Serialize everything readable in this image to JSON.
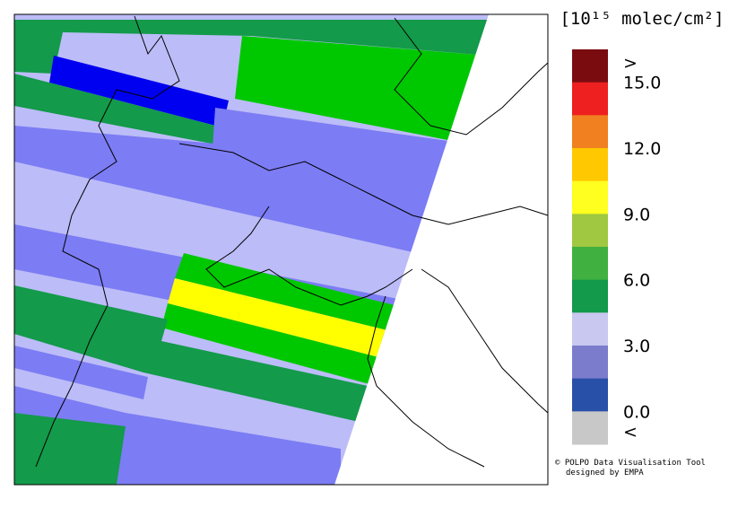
{
  "legend": {
    "title": "[10¹⁵ molec/cm²]",
    "labels": [
      ">",
      "15.0",
      "12.0",
      "9.0",
      "6.0",
      "3.0",
      "0.0",
      "<"
    ],
    "colors": [
      "#7a0c10",
      "#ee2020",
      "#f08020",
      "#ffc800",
      "#ffff20",
      "#a0c840",
      "#40b040",
      "#139a4a",
      "#c8c8f0",
      "#7c7ccc",
      "#2850a8",
      "#c8c8c8"
    ]
  },
  "credits": [
    "© POLPO Data Visualisation Tool",
    "designed by EMPA"
  ]
}
